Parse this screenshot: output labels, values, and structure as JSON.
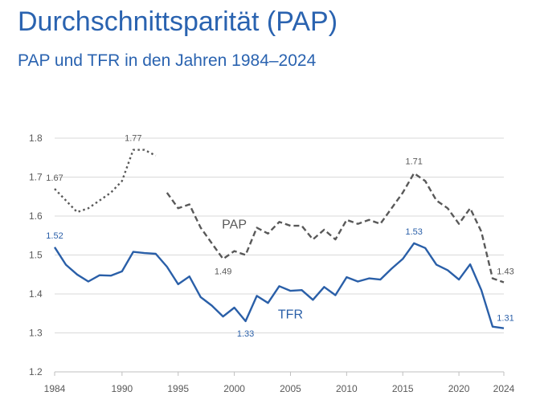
{
  "page": {
    "title": "Durchschnittsparität (PAP)",
    "subtitle": "PAP und TFR in den Jahren 1984–2024"
  },
  "chart_data": {
    "type": "line",
    "title": "Durchschnittsparität (PAP)",
    "subtitle": "PAP und TFR in den Jahren 1984–2024",
    "xlabel": "",
    "ylabel": "",
    "xlim": [
      1984,
      2024
    ],
    "ylim": [
      1.2,
      1.8
    ],
    "x_ticks": [
      1984,
      1990,
      1995,
      2000,
      2005,
      2010,
      2015,
      2020,
      2024
    ],
    "y_ticks": [
      "1.2",
      "1.3",
      "1.4",
      "1.5",
      "1.6",
      "1.7",
      "1.8"
    ],
    "grid": "horizontal",
    "legend": "none",
    "series": [
      {
        "name": "PAP",
        "color": "#595959",
        "style": "dotted",
        "points": [
          [
            1984,
            1.67
          ],
          [
            1985,
            1.64
          ],
          [
            1986,
            1.61
          ],
          [
            1987,
            1.62
          ],
          [
            1988,
            1.64
          ],
          [
            1989,
            1.66
          ],
          [
            1990,
            1.69
          ],
          [
            1991,
            1.77
          ],
          [
            1992,
            1.77
          ],
          [
            1993,
            1.755
          ]
        ]
      },
      {
        "name": "PAP",
        "color": "#595959",
        "style": "dashed",
        "points": [
          [
            1994,
            1.66
          ],
          [
            1995,
            1.62
          ],
          [
            1996,
            1.63
          ],
          [
            1997,
            1.57
          ],
          [
            1998,
            1.53
          ],
          [
            1999,
            1.49
          ],
          [
            2000,
            1.51
          ],
          [
            2001,
            1.5
          ],
          [
            2002,
            1.57
          ],
          [
            2003,
            1.555
          ],
          [
            2004,
            1.585
          ],
          [
            2005,
            1.575
          ],
          [
            2006,
            1.575
          ],
          [
            2007,
            1.54
          ],
          [
            2008,
            1.565
          ],
          [
            2009,
            1.54
          ],
          [
            2010,
            1.59
          ],
          [
            2011,
            1.58
          ],
          [
            2012,
            1.59
          ],
          [
            2013,
            1.58
          ],
          [
            2014,
            1.62
          ],
          [
            2015,
            1.66
          ],
          [
            2016,
            1.71
          ],
          [
            2017,
            1.69
          ],
          [
            2018,
            1.64
          ],
          [
            2019,
            1.62
          ],
          [
            2020,
            1.58
          ],
          [
            2021,
            1.62
          ],
          [
            2022,
            1.56
          ],
          [
            2023,
            1.44
          ],
          [
            2024,
            1.43
          ]
        ]
      },
      {
        "name": "TFR",
        "color": "#2a5fa8",
        "style": "solid",
        "points": [
          [
            1984,
            1.52
          ],
          [
            1985,
            1.475
          ],
          [
            1986,
            1.45
          ],
          [
            1987,
            1.432
          ],
          [
            1988,
            1.448
          ],
          [
            1989,
            1.447
          ],
          [
            1990,
            1.458
          ],
          [
            1991,
            1.508
          ],
          [
            1992,
            1.505
          ],
          [
            1993,
            1.503
          ],
          [
            1994,
            1.47
          ],
          [
            1995,
            1.425
          ],
          [
            1996,
            1.445
          ],
          [
            1997,
            1.392
          ],
          [
            1998,
            1.37
          ],
          [
            1999,
            1.342
          ],
          [
            2000,
            1.365
          ],
          [
            2001,
            1.33
          ],
          [
            2002,
            1.395
          ],
          [
            2003,
            1.377
          ],
          [
            2004,
            1.42
          ],
          [
            2005,
            1.408
          ],
          [
            2006,
            1.41
          ],
          [
            2007,
            1.385
          ],
          [
            2008,
            1.418
          ],
          [
            2009,
            1.397
          ],
          [
            2010,
            1.443
          ],
          [
            2011,
            1.432
          ],
          [
            2012,
            1.44
          ],
          [
            2013,
            1.437
          ],
          [
            2014,
            1.465
          ],
          [
            2015,
            1.49
          ],
          [
            2016,
            1.53
          ],
          [
            2017,
            1.518
          ],
          [
            2018,
            1.475
          ],
          [
            2019,
            1.461
          ],
          [
            2020,
            1.437
          ],
          [
            2021,
            1.476
          ],
          [
            2022,
            1.41
          ],
          [
            2023,
            1.316
          ],
          [
            2024,
            1.312
          ]
        ]
      }
    ],
    "data_labels": [
      {
        "series": "PAP",
        "x": 1984,
        "y": 1.67,
        "text": "1.67",
        "color": "#595959",
        "pos": "above-left"
      },
      {
        "series": "PAP",
        "x": 1991,
        "y": 1.77,
        "text": "1.77",
        "color": "#595959",
        "pos": "above"
      },
      {
        "series": "PAP",
        "x": 1999,
        "y": 1.49,
        "text": "1.49",
        "color": "#595959",
        "pos": "below"
      },
      {
        "series": "PAP",
        "x": 2016,
        "y": 1.71,
        "text": "1.71",
        "color": "#595959",
        "pos": "above"
      },
      {
        "series": "PAP",
        "x": 2024,
        "y": 1.43,
        "text": "1.43",
        "color": "#595959",
        "pos": "above-left"
      },
      {
        "series": "TFR",
        "x": 1984,
        "y": 1.52,
        "text": "1.52",
        "color": "#2a5fa8",
        "pos": "above"
      },
      {
        "series": "TFR",
        "x": 2001,
        "y": 1.33,
        "text": "1.33",
        "color": "#2a5fa8",
        "pos": "below"
      },
      {
        "series": "TFR",
        "x": 2016,
        "y": 1.53,
        "text": "1.53",
        "color": "#2a5fa8",
        "pos": "above"
      },
      {
        "series": "TFR",
        "x": 2024,
        "y": 1.31,
        "text": "1.31",
        "color": "#2a5fa8",
        "pos": "above-left"
      }
    ],
    "series_labels": [
      {
        "text": "PAP",
        "x": 2000,
        "y": 1.58,
        "color": "#595959"
      },
      {
        "text": "TFR",
        "x": 2005,
        "y": 1.35,
        "color": "#2a5fa8"
      }
    ]
  }
}
